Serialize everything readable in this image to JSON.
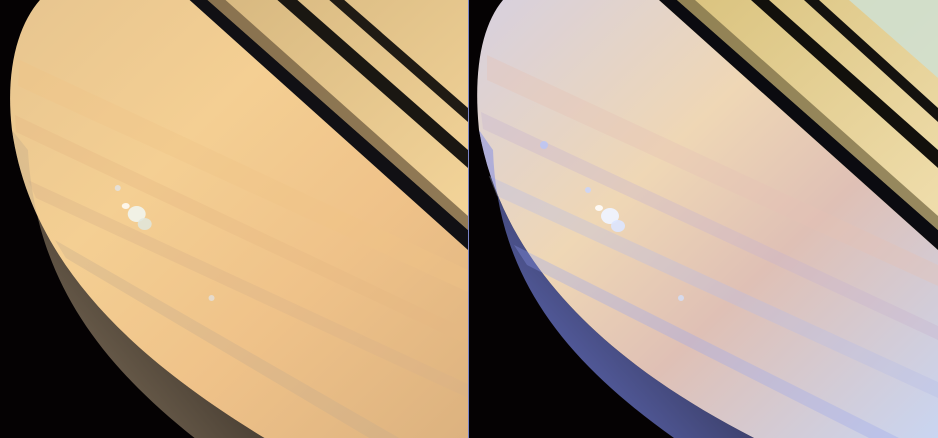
{
  "figure": {
    "panels": [
      {
        "id": "natural-color",
        "colors": {
          "space": "#050203",
          "planet_light": "#f6d49a",
          "planet_mid": "#efc48a",
          "planet_dark": "#d9ae7c",
          "limb": "#cfb894",
          "rings_light": "#e9cf96",
          "rings_dark": "#111014",
          "storm": "#eef2e8"
        }
      },
      {
        "id": "false-color",
        "colors": {
          "space": "#050203",
          "planet_light": "#f3dfb3",
          "planet_mid": "#d8b7c0",
          "planet_dark": "#a7b2d8",
          "limb": "#7f86e9",
          "rings_light": "#eed9a6",
          "rings_dark": "#0b0b10",
          "storm": "#eaf2ff"
        }
      }
    ]
  }
}
